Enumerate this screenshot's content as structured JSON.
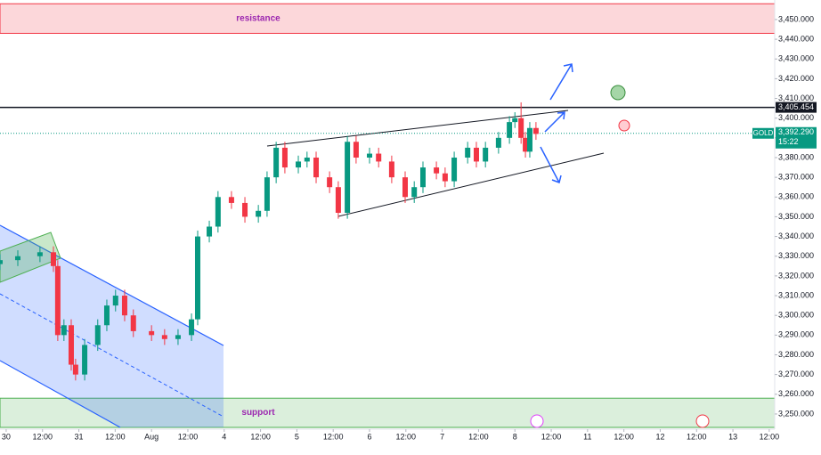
{
  "chart_data": {
    "type": "candlestick",
    "up_color": "#089981",
    "down_color": "#f23645",
    "x": [
      -0.17,
      0.32,
      0.93,
      1.3,
      1.42,
      1.59,
      1.79,
      1.91,
      2.16,
      2.52,
      2.77,
      3.01,
      3.26,
      3.5,
      4.0,
      4.36,
      4.73,
      5.1,
      5.27,
      5.59,
      5.83,
      6.2,
      6.57,
      6.94,
      7.18,
      7.43,
      7.67,
      8.04,
      8.28,
      8.53,
      8.9,
      9.14,
      9.39,
      9.63,
      10.0,
      10.25,
      10.61,
      10.98,
      11.23,
      11.47,
      11.84,
      12.08,
      12.33,
      12.7,
      12.94,
      13.19,
      13.55,
      13.85,
      14.0,
      14.17,
      14.29,
      14.41,
      14.58
    ],
    "open": [
      3326,
      3328,
      3330,
      3332,
      3325,
      3290,
      3295,
      3275,
      3270,
      3285,
      3295,
      3305,
      3310,
      3300,
      3292,
      3290,
      3288,
      3290,
      3298,
      3340,
      3345,
      3360,
      3357,
      3350,
      3353,
      3370,
      3385,
      3375,
      3378,
      3380,
      3370,
      3365,
      3352,
      3388,
      3380,
      3382,
      3378,
      3370,
      3360,
      3365,
      3375,
      3372,
      3368,
      3380,
      3385,
      3378,
      3385,
      3390,
      3398,
      3400,
      3390,
      3383,
      3395
    ],
    "high": [
      3331,
      3333,
      3335,
      3335,
      3328,
      3298,
      3298,
      3278,
      3288,
      3298,
      3308,
      3313,
      3313,
      3303,
      3295,
      3293,
      3293,
      3301,
      3343,
      3348,
      3363,
      3363,
      3360,
      3356,
      3373,
      3388,
      3388,
      3381,
      3383,
      3383,
      3373,
      3368,
      3391,
      3391,
      3385,
      3385,
      3381,
      3373,
      3368,
      3378,
      3378,
      3375,
      3383,
      3388,
      3388,
      3388,
      3393,
      3401,
      3403,
      3408,
      3393,
      3398,
      3398
    ],
    "low": [
      3323,
      3325,
      3327,
      3322,
      3287,
      3287,
      3272,
      3267,
      3267,
      3282,
      3292,
      3302,
      3297,
      3289,
      3287,
      3285,
      3285,
      3287,
      3295,
      3337,
      3342,
      3354,
      3347,
      3347,
      3350,
      3367,
      3372,
      3372,
      3375,
      3367,
      3362,
      3349,
      3349,
      3377,
      3377,
      3375,
      3367,
      3357,
      3357,
      3362,
      3369,
      3365,
      3365,
      3377,
      3375,
      3375,
      3382,
      3387,
      3395,
      3387,
      3380,
      3380,
      3389
    ],
    "close": [
      3328,
      3330,
      3332,
      3325,
      3290,
      3295,
      3275,
      3270,
      3285,
      3295,
      3305,
      3310,
      3300,
      3292,
      3290,
      3288,
      3290,
      3298,
      3340,
      3345,
      3360,
      3357,
      3350,
      3353,
      3370,
      3385,
      3375,
      3378,
      3380,
      3370,
      3365,
      3352,
      3388,
      3380,
      3382,
      3378,
      3370,
      3360,
      3365,
      3375,
      3372,
      3368,
      3380,
      3385,
      3378,
      3385,
      3390,
      3398,
      3400,
      3390,
      3383,
      3395,
      3392
    ],
    "xlim": [
      -0.17,
      21.15
    ],
    "xticks": [
      {
        "value": 0,
        "label": "30"
      },
      {
        "value": 1,
        "label": "12:00"
      },
      {
        "value": 2,
        "label": "31"
      },
      {
        "value": 3,
        "label": "12:00"
      },
      {
        "value": 4,
        "label": "Aug"
      },
      {
        "value": 5,
        "label": "12:00"
      },
      {
        "value": 6,
        "label": "4"
      },
      {
        "value": 7,
        "label": "12:00"
      },
      {
        "value": 8,
        "label": "5"
      },
      {
        "value": 9,
        "label": "12:00"
      },
      {
        "value": 10,
        "label": "6"
      },
      {
        "value": 11,
        "label": "12:00"
      },
      {
        "value": 12,
        "label": "7"
      },
      {
        "value": 13,
        "label": "12:00"
      },
      {
        "value": 14,
        "label": "8"
      },
      {
        "value": 15,
        "label": "12:00"
      },
      {
        "value": 16,
        "label": "11"
      },
      {
        "value": 17,
        "label": "12:00"
      },
      {
        "value": 18,
        "label": "12"
      },
      {
        "value": 19,
        "label": "12:00"
      },
      {
        "value": 20,
        "label": "13"
      },
      {
        "value": 21,
        "label": "12:00"
      }
    ],
    "ylim": [
      3243.2,
      3459.9
    ],
    "yticks": [
      {
        "value": 3250,
        "label": "3,250.000"
      },
      {
        "value": 3260,
        "label": "3,260.000"
      },
      {
        "value": 3270,
        "label": "3,270.000"
      },
      {
        "value": 3280,
        "label": "3,280.000"
      },
      {
        "value": 3290,
        "label": "3,290.000"
      },
      {
        "value": 3300,
        "label": "3,300.000"
      },
      {
        "value": 3310,
        "label": "3,310.000"
      },
      {
        "value": 3320,
        "label": "3,320.000"
      },
      {
        "value": 3330,
        "label": "3,330.000"
      },
      {
        "value": 3340,
        "label": "3,340.000"
      },
      {
        "value": 3350,
        "label": "3,350.000"
      },
      {
        "value": 3360,
        "label": "3,360.000"
      },
      {
        "value": 3370,
        "label": "3,370.000"
      },
      {
        "value": 3380,
        "label": "3,380.000"
      },
      {
        "value": 3390,
        "label": "3,390.000"
      },
      {
        "value": 3400,
        "label": "3,400.000"
      },
      {
        "value": 3410,
        "label": "3,410.000"
      },
      {
        "value": 3420,
        "label": "3,420.000"
      },
      {
        "value": 3430,
        "label": "3,430.000"
      },
      {
        "value": 3440,
        "label": "3,440.000"
      },
      {
        "value": 3450,
        "label": "3,450.000"
      }
    ],
    "zones": [
      {
        "name": "resistance",
        "from": 3443,
        "to": 3458,
        "color": "#f23645"
      },
      {
        "name": "support",
        "from": 3243.2,
        "to": 3258,
        "color": "#4caf50"
      }
    ],
    "level": {
      "value": 3405.454,
      "label": "3,405.454"
    },
    "price": {
      "value": 3392.29,
      "label": "3,392.290",
      "symbol": "GOLD",
      "time": "15:22"
    }
  }
}
